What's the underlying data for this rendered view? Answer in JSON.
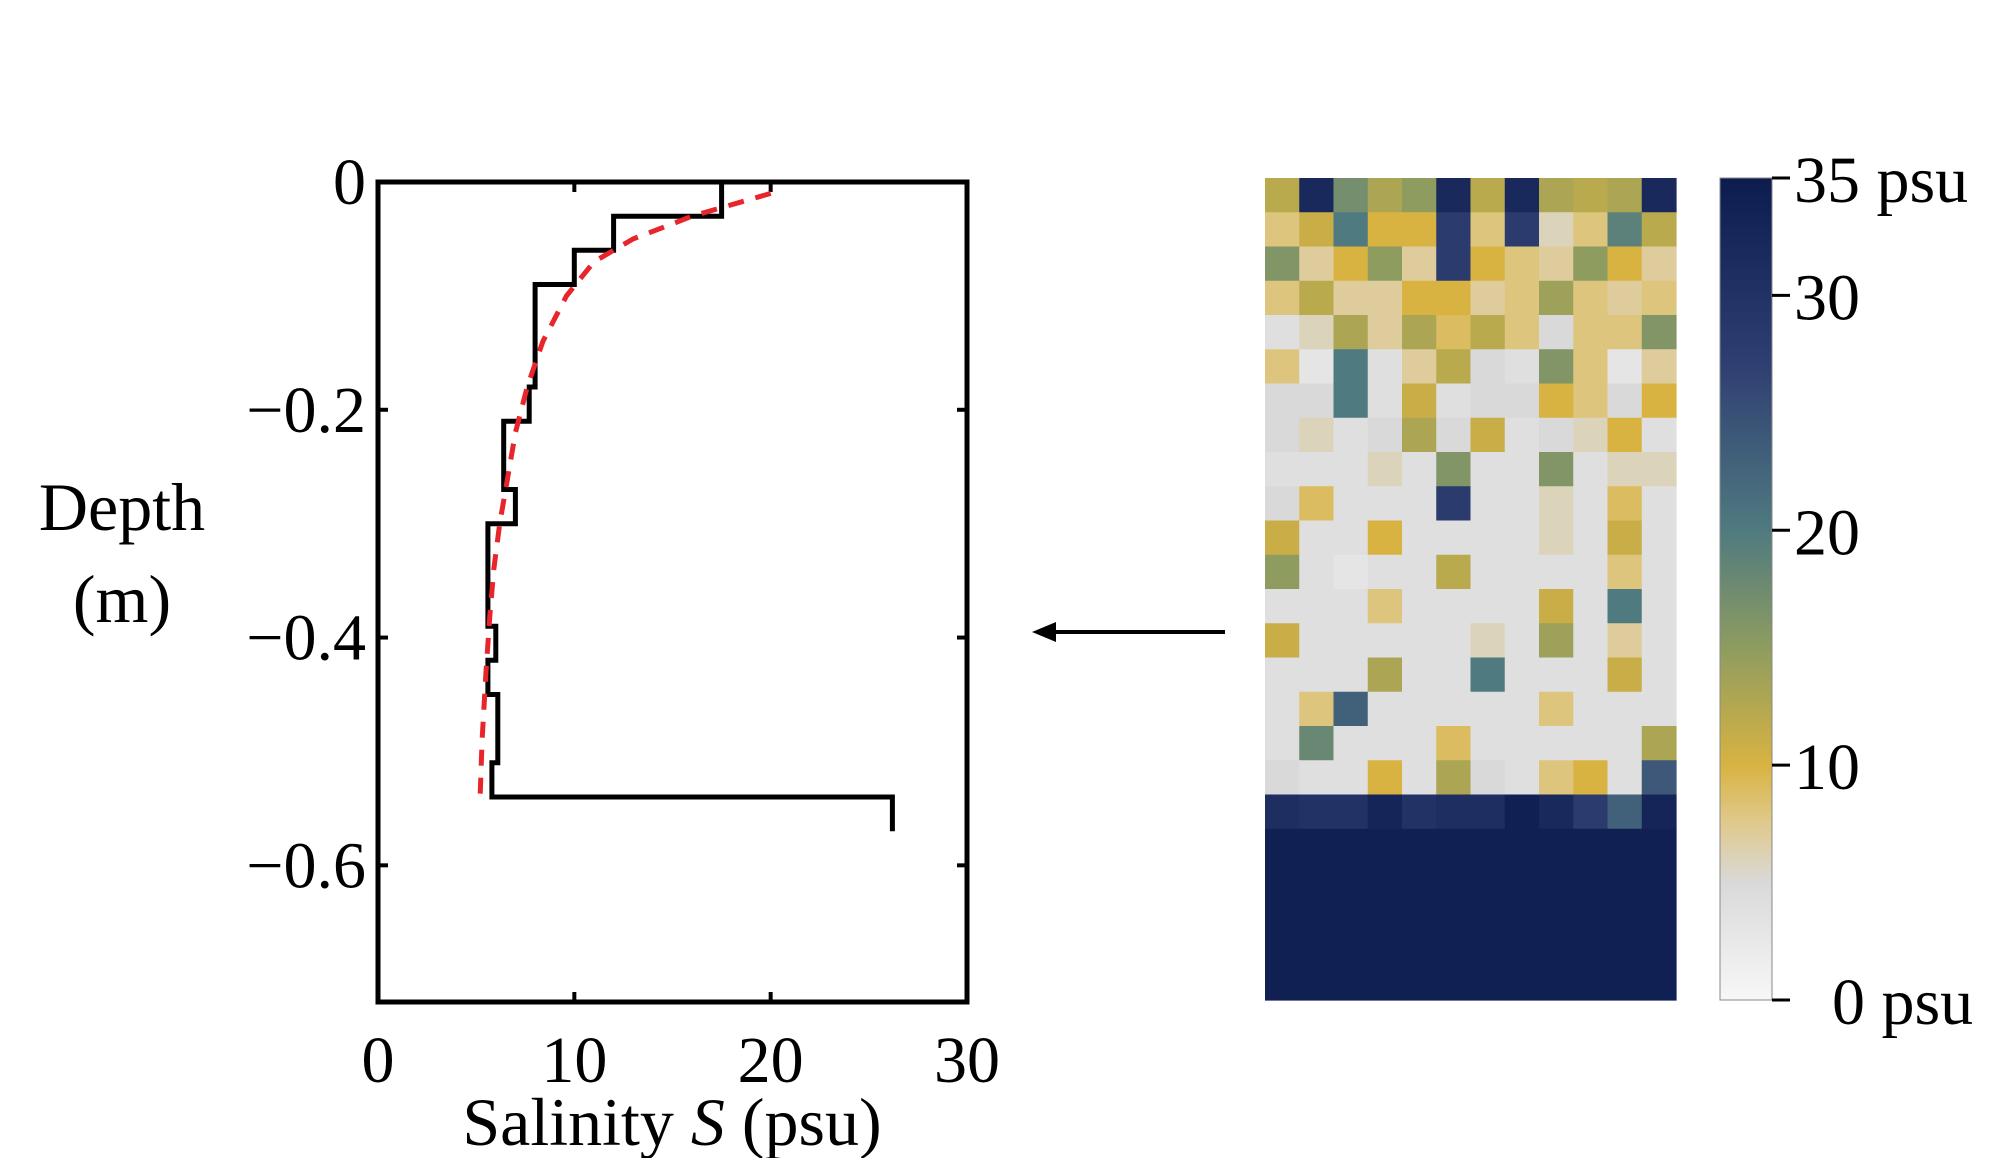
{
  "chart_data": [
    {
      "type": "line",
      "title": "",
      "xlabel": "Salinity S (psu)",
      "xlabel_parts": {
        "pre": "Salinity ",
        "var": "S",
        "post": " (psu)"
      },
      "ylabel_lines": [
        "Depth",
        "(m)"
      ],
      "xlim": [
        0,
        30
      ],
      "ylim": [
        -0.72,
        0
      ],
      "xticks": [
        0,
        10,
        20,
        30
      ],
      "xtick_labels": [
        "0",
        "10",
        "20",
        "30"
      ],
      "yticks": [
        0,
        -0.2,
        -0.4,
        -0.6
      ],
      "ytick_labels": [
        "0",
        "−0.2",
        "−0.4",
        "−0.6"
      ],
      "grid": false,
      "series": [
        {
          "style": "solid-step",
          "color": "#000000",
          "x": [
            17.5,
            17.5,
            12.0,
            12.0,
            10.0,
            10.0,
            8.0,
            8.0,
            7.7,
            7.7,
            6.4,
            6.4,
            7.0,
            7.0,
            5.6,
            5.6,
            6.0,
            6.0,
            5.6,
            5.6,
            6.1,
            6.1,
            5.8,
            5.8,
            7.2,
            7.2,
            26.2,
            26.2
          ],
          "y": [
            0.0,
            -0.03,
            -0.03,
            -0.06,
            -0.06,
            -0.09,
            -0.09,
            -0.18,
            -0.18,
            -0.21,
            -0.21,
            -0.27,
            -0.27,
            -0.3,
            -0.3,
            -0.39,
            -0.39,
            -0.42,
            -0.42,
            -0.45,
            -0.45,
            -0.51,
            -0.51,
            -0.54,
            -0.54,
            -0.54,
            -0.54,
            -0.57
          ]
        },
        {
          "style": "dashed",
          "color": "#e8252a",
          "x": [
            20.0,
            16.0,
            13.0,
            11.0,
            9.6,
            8.4,
            7.6,
            7.0,
            6.6,
            6.2,
            5.9,
            5.7,
            5.5,
            5.3,
            5.2
          ],
          "y": [
            -0.01,
            -0.03,
            -0.05,
            -0.07,
            -0.1,
            -0.14,
            -0.18,
            -0.22,
            -0.26,
            -0.3,
            -0.34,
            -0.38,
            -0.43,
            -0.49,
            -0.54
          ]
        }
      ]
    },
    {
      "type": "heatmap",
      "units": "psu",
      "rows": 24,
      "cols": 12,
      "values": [
        [
          12,
          32,
          17,
          13,
          15,
          32,
          12,
          32,
          13,
          12,
          13,
          32
        ],
        [
          8,
          11,
          20,
          10,
          10,
          28,
          8,
          28,
          6,
          8,
          19,
          12
        ],
        [
          16,
          7,
          10,
          15,
          7,
          28,
          10,
          8,
          7,
          15,
          10,
          7
        ],
        [
          8,
          12,
          7,
          7,
          10,
          10,
          7,
          8,
          14,
          8,
          7,
          8
        ],
        [
          4,
          6,
          13,
          7,
          13,
          9,
          12,
          8,
          5,
          8,
          8,
          16
        ],
        [
          8,
          3,
          20,
          4,
          7,
          12,
          5,
          4,
          16,
          8,
          3,
          7
        ],
        [
          5,
          5,
          20,
          4,
          11,
          4,
          5,
          5,
          10,
          8,
          5,
          10
        ],
        [
          5,
          6,
          4,
          5,
          13,
          5,
          11,
          4,
          5,
          6,
          10,
          4
        ],
        [
          4,
          4,
          4,
          6,
          4,
          16,
          4,
          4,
          16,
          4,
          6,
          6
        ],
        [
          5,
          9,
          4,
          4,
          4,
          28,
          4,
          4,
          6,
          4,
          9,
          4
        ],
        [
          11,
          4,
          4,
          10,
          4,
          4,
          4,
          4,
          6,
          4,
          11,
          4
        ],
        [
          15,
          4,
          3,
          4,
          4,
          12,
          4,
          4,
          4,
          4,
          8,
          4
        ],
        [
          4,
          4,
          4,
          8,
          4,
          4,
          4,
          4,
          11,
          4,
          20,
          4
        ],
        [
          11,
          4,
          4,
          4,
          4,
          4,
          6,
          4,
          14,
          4,
          7,
          4
        ],
        [
          4,
          4,
          4,
          13,
          4,
          4,
          20,
          4,
          4,
          4,
          11,
          4
        ],
        [
          4,
          8,
          23,
          4,
          4,
          4,
          4,
          4,
          8,
          4,
          4,
          4
        ],
        [
          4,
          18,
          4,
          4,
          4,
          9,
          4,
          4,
          4,
          4,
          4,
          13
        ],
        [
          5,
          4,
          4,
          10,
          4,
          13,
          5,
          4,
          8,
          10,
          4,
          24
        ],
        [
          31,
          30,
          30,
          33,
          30,
          31,
          31,
          34,
          32,
          28,
          23,
          33
        ],
        [
          34,
          34,
          34,
          34,
          34,
          34,
          34,
          34,
          34,
          34,
          34,
          34
        ],
        [
          34,
          34,
          34,
          34,
          34,
          34,
          34,
          34,
          34,
          34,
          34,
          34
        ],
        [
          34,
          34,
          34,
          34,
          34,
          34,
          34,
          34,
          34,
          34,
          34,
          34
        ],
        [
          34,
          34,
          34,
          34,
          34,
          34,
          34,
          34,
          34,
          34,
          34,
          34
        ],
        [
          34,
          34,
          34,
          34,
          34,
          34,
          34,
          34,
          34,
          34,
          34,
          34
        ]
      ],
      "colorbar": {
        "min": 0,
        "max": 35,
        "ticks": [
          0,
          10,
          20,
          30,
          35
        ],
        "labels": [
          "0 psu",
          "10",
          "20",
          "30",
          "35 psu"
        ],
        "colormap": [
          {
            "v": 0,
            "color": "#f7f7f7"
          },
          {
            "v": 5,
            "color": "#d9d9d9"
          },
          {
            "v": 7.5,
            "color": "#e0c98d"
          },
          {
            "v": 10,
            "color": "#d8b342"
          },
          {
            "v": 15,
            "color": "#8e9c60"
          },
          {
            "v": 20,
            "color": "#4f7a80"
          },
          {
            "v": 27,
            "color": "#2f3f72"
          },
          {
            "v": 35,
            "color": "#0c1c4f"
          }
        ]
      }
    }
  ],
  "colors": {
    "step_line": "#000000",
    "fit_line": "#e8252a",
    "arrow": "#000000"
  }
}
